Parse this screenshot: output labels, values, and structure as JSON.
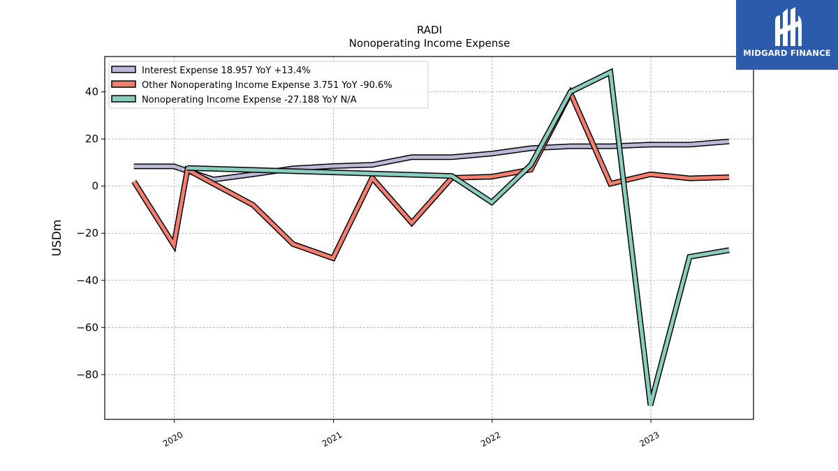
{
  "chart_data": {
    "type": "line",
    "title": "RADI",
    "subtitle": "Nonoperating Income Expense",
    "ylabel": "USDm",
    "xlabel": "",
    "ylim": [
      -99,
      55
    ],
    "xlim": [
      "2019-07-25",
      "2023-08-25"
    ],
    "yticks": [
      40,
      20,
      0,
      -20,
      -40,
      -60,
      -80
    ],
    "ytick_labels": [
      "40",
      "20",
      "0",
      "−20",
      "−40",
      "−60",
      "−80"
    ],
    "xticks": [
      "2020-01-01",
      "2021-01-01",
      "2022-01-01",
      "2023-01-01"
    ],
    "xtick_labels": [
      "2020",
      "2021",
      "2022",
      "2023"
    ],
    "grid": true,
    "legend_position": "top-left",
    "series": [
      {
        "name": "Interest Expense  18.957 YoY +13.4%",
        "color": "#bcb8d8",
        "points": [
          [
            "2019-09-30",
            8.4
          ],
          [
            "2019-12-31",
            8.4
          ],
          [
            "2020-03-31",
            2.8
          ],
          [
            "2020-06-30",
            5.0
          ],
          [
            "2020-09-30",
            7.5
          ],
          [
            "2020-12-31",
            8.5
          ],
          [
            "2021-03-31",
            9.0
          ],
          [
            "2021-06-30",
            12.3
          ],
          [
            "2021-09-30",
            12.3
          ],
          [
            "2021-12-31",
            13.8
          ],
          [
            "2022-03-31",
            16.1
          ],
          [
            "2022-06-30",
            16.9
          ],
          [
            "2022-09-30",
            16.9
          ],
          [
            "2022-12-31",
            17.6
          ],
          [
            "2023-03-31",
            17.6
          ],
          [
            "2023-06-30",
            18.957
          ]
        ]
      },
      {
        "name": "Other Nonoperating Income Expense  3.751 YoY -90.6%",
        "color": "#f47e6e",
        "points": [
          [
            "2019-09-30",
            2.0
          ],
          [
            "2019-12-31",
            -25.0
          ],
          [
            "2020-01-31",
            7.0
          ],
          [
            "2020-03-31",
            1.0
          ],
          [
            "2020-06-30",
            -8.0
          ],
          [
            "2020-09-30",
            -24.6
          ],
          [
            "2020-12-31",
            -30.6
          ],
          [
            "2021-03-31",
            3.5
          ],
          [
            "2021-06-30",
            -15.6
          ],
          [
            "2021-09-30",
            3.5
          ],
          [
            "2021-12-31",
            4.0
          ],
          [
            "2022-03-31",
            7.0
          ],
          [
            "2022-06-30",
            39.5
          ],
          [
            "2022-09-30",
            1.0
          ],
          [
            "2022-12-31",
            5.0
          ],
          [
            "2023-03-31",
            3.3
          ],
          [
            "2023-06-30",
            3.751
          ]
        ]
      },
      {
        "name": "Nonoperating Income Expense  -27.188 YoY N/A",
        "color": "#89cdbf",
        "points": [
          [
            "2020-01-31",
            7.7
          ],
          [
            "2021-09-30",
            4.3
          ],
          [
            "2021-12-31",
            -6.9
          ],
          [
            "2022-03-31",
            9.0
          ],
          [
            "2022-06-30",
            40.0
          ],
          [
            "2022-09-30",
            48.3
          ],
          [
            "2022-12-31",
            -93.0
          ],
          [
            "2023-03-31",
            -30.0
          ],
          [
            "2023-06-30",
            -27.188
          ]
        ]
      }
    ]
  },
  "logo": {
    "text": "MIDGARD FINANCE"
  }
}
